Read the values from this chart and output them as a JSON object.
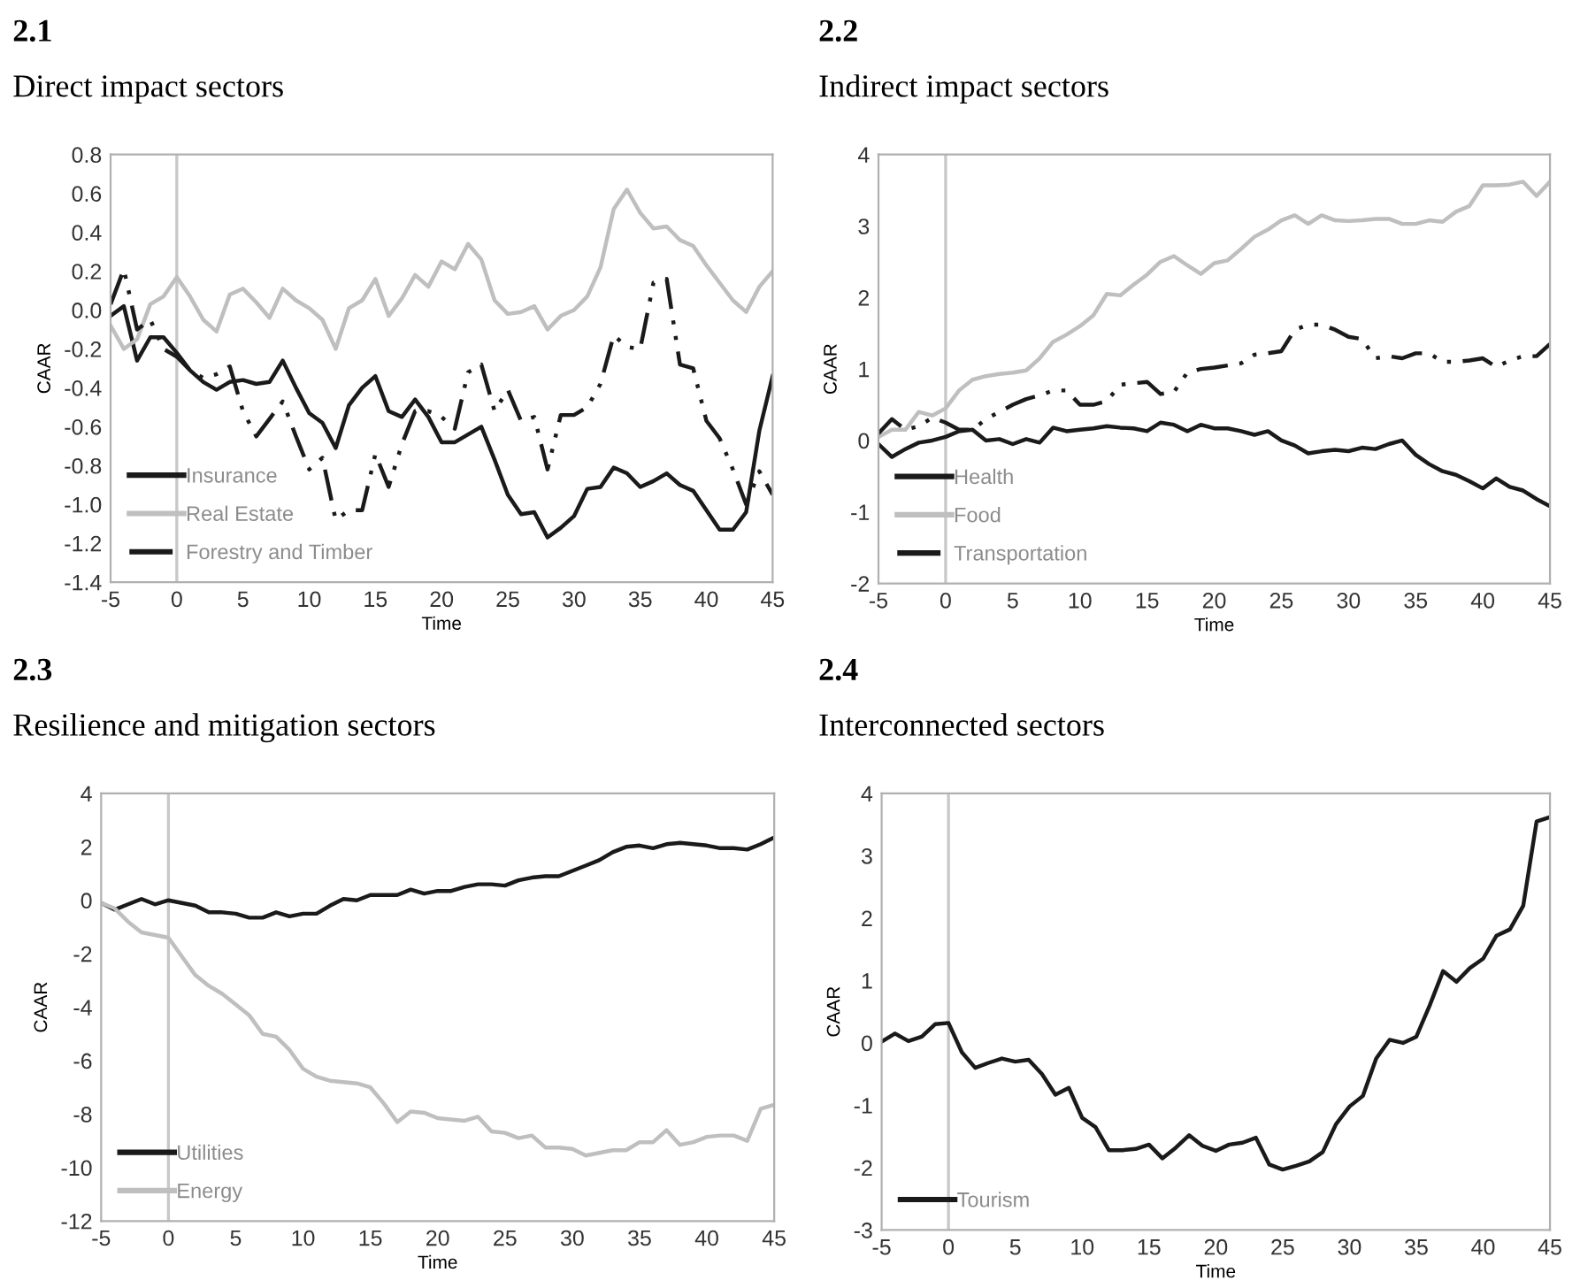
{
  "chart_data": [
    {
      "type": "line",
      "title": "2.1",
      "subtitle": "Direct impact sectors",
      "xlabel": "Time",
      "ylabel": "CAAR",
      "legend": "bottom left",
      "grid": false,
      "marker": "none",
      "x": [
        -5,
        -4,
        -3,
        -2,
        -1,
        0,
        1,
        2,
        3,
        4,
        5,
        6,
        7,
        8,
        9,
        10,
        11,
        12,
        13,
        14,
        15,
        16,
        17,
        18,
        19,
        20,
        21,
        22,
        23,
        24,
        25,
        26,
        27,
        28,
        29,
        30,
        31,
        32,
        33,
        34,
        35,
        36,
        37,
        38,
        39,
        40,
        41,
        42,
        43,
        44,
        45
      ],
      "xlim": [
        -5,
        45
      ],
      "xticks": [
        -5,
        0,
        5,
        10,
        15,
        20,
        25,
        30,
        35,
        40,
        45
      ],
      "ylim": [
        -1.4,
        0.8
      ],
      "yticks": [
        {
          "value": -1.4,
          "label": "-1.4"
        },
        {
          "value": -1.2,
          "label": "-1.2"
        },
        {
          "value": -1.0,
          "label": "-1.0"
        },
        {
          "value": -0.8,
          "label": "-0.8"
        },
        {
          "value": -0.6,
          "label": "-0.6"
        },
        {
          "value": -0.4,
          "label": "-0.4"
        },
        {
          "value": -0.2,
          "label": "-0.2"
        },
        {
          "value": 0,
          "label": "0.0"
        },
        {
          "value": 0.2,
          "label": "0.2"
        },
        {
          "value": 0.4,
          "label": "0.4"
        },
        {
          "value": 0.6,
          "label": "0.6"
        },
        {
          "value": 0.8,
          "label": "0.8"
        }
      ],
      "ref_lines": [
        {
          "axis": "x",
          "value": 0,
          "color": "#c8c8c8"
        }
      ],
      "series": [
        {
          "name": "Insurance",
          "color": "#1a1a1a",
          "line_style": "solid",
          "values": [
            -0.03,
            0.02,
            -0.26,
            -0.14,
            -0.14,
            -0.22,
            -0.31,
            -0.37,
            -0.41,
            -0.37,
            -0.36,
            -0.38,
            -0.37,
            -0.26,
            -0.4,
            -0.53,
            -0.58,
            -0.71,
            -0.49,
            -0.4,
            -0.34,
            -0.52,
            -0.55,
            -0.46,
            -0.55,
            -0.68,
            -0.68,
            -0.64,
            -0.6,
            -0.77,
            -0.95,
            -1.05,
            -1.04,
            -1.17,
            -1.12,
            -1.06,
            -0.92,
            -0.91,
            -0.81,
            -0.84,
            -0.91,
            -0.88,
            -0.84,
            -0.9,
            -0.93,
            -1.03,
            -1.13,
            -1.13,
            -1.04,
            -0.62,
            -0.34
          ]
        },
        {
          "name": "Real Estate",
          "color": "#bfbfbf",
          "line_style": "solid",
          "values": [
            -0.08,
            -0.2,
            -0.15,
            0.03,
            0.07,
            0.17,
            0.07,
            -0.05,
            -0.11,
            0.08,
            0.11,
            0.04,
            -0.04,
            0.11,
            0.05,
            0.01,
            -0.05,
            -0.2,
            0.01,
            0.05,
            0.16,
            -0.03,
            0.06,
            0.18,
            0.12,
            0.25,
            0.21,
            0.34,
            0.26,
            0.05,
            -0.02,
            -0.01,
            0.02,
            -0.1,
            -0.03,
            0.0,
            0.07,
            0.22,
            0.52,
            0.62,
            0.5,
            0.42,
            0.43,
            0.36,
            0.33,
            0.23,
            0.14,
            0.05,
            -0.01,
            0.12,
            0.2
          ]
        },
        {
          "name": "Forestry and Timber",
          "color": "#1a1a1a",
          "line_style": "dashed",
          "values": [
            0.03,
            0.21,
            -0.1,
            -0.05,
            -0.2,
            -0.24,
            -0.31,
            -0.35,
            -0.33,
            -0.29,
            -0.52,
            -0.65,
            -0.56,
            -0.47,
            -0.65,
            -0.82,
            -0.76,
            -1.08,
            -1.03,
            -1.03,
            -0.74,
            -0.91,
            -0.69,
            -0.52,
            -0.52,
            -0.55,
            -0.61,
            -0.32,
            -0.28,
            -0.52,
            -0.41,
            -0.57,
            -0.55,
            -0.82,
            -0.54,
            -0.54,
            -0.5,
            -0.38,
            -0.13,
            -0.19,
            -0.2,
            0.14,
            0.16,
            -0.28,
            -0.3,
            -0.57,
            -0.66,
            -0.82,
            -1.0,
            -0.83,
            -0.95
          ]
        }
      ]
    },
    {
      "type": "line",
      "title": "2.2",
      "subtitle": "Indirect impact sectors",
      "xlabel": "Time",
      "ylabel": "CAAR",
      "legend": "bottom left",
      "grid": false,
      "marker": "none",
      "x": [
        -5,
        -4,
        -3,
        -2,
        -1,
        0,
        1,
        2,
        3,
        4,
        5,
        6,
        7,
        8,
        9,
        10,
        11,
        12,
        13,
        14,
        15,
        16,
        17,
        18,
        19,
        20,
        21,
        22,
        23,
        24,
        25,
        26,
        27,
        28,
        29,
        30,
        31,
        32,
        33,
        34,
        35,
        36,
        37,
        38,
        39,
        40,
        41,
        42,
        43,
        44,
        45
      ],
      "xlim": [
        -5,
        45
      ],
      "xticks": [
        -5,
        0,
        5,
        10,
        15,
        20,
        25,
        30,
        35,
        40,
        45
      ],
      "ylim": [
        -2,
        4
      ],
      "yticks": [
        -2,
        -1,
        0,
        1,
        2,
        3,
        4
      ],
      "ref_lines": [
        {
          "axis": "x",
          "value": 0,
          "color": "#c8c8c8"
        }
      ],
      "series": [
        {
          "name": "Health",
          "color": "#1a1a1a",
          "line_style": "solid",
          "values": [
            -0.05,
            -0.23,
            -0.12,
            -0.03,
            0.0,
            0.05,
            0.13,
            0.15,
            0.0,
            0.02,
            -0.05,
            0.02,
            -0.03,
            0.18,
            0.13,
            0.15,
            0.17,
            0.2,
            0.18,
            0.17,
            0.13,
            0.25,
            0.22,
            0.13,
            0.22,
            0.17,
            0.17,
            0.13,
            0.08,
            0.13,
            0.0,
            -0.07,
            -0.18,
            -0.15,
            -0.13,
            -0.15,
            -0.1,
            -0.12,
            -0.05,
            0.0,
            -0.2,
            -0.33,
            -0.43,
            -0.48,
            -0.57,
            -0.67,
            -0.53,
            -0.65,
            -0.7,
            -0.82,
            -0.92
          ]
        },
        {
          "name": "Food",
          "color": "#bfbfbf",
          "line_style": "solid",
          "values": [
            0.05,
            0.15,
            0.15,
            0.4,
            0.35,
            0.45,
            0.7,
            0.85,
            0.9,
            0.93,
            0.95,
            0.98,
            1.15,
            1.38,
            1.48,
            1.6,
            1.75,
            2.05,
            2.03,
            2.18,
            2.32,
            2.5,
            2.58,
            2.45,
            2.33,
            2.48,
            2.52,
            2.68,
            2.85,
            2.95,
            3.08,
            3.15,
            3.03,
            3.15,
            3.08,
            3.07,
            3.08,
            3.1,
            3.1,
            3.03,
            3.03,
            3.08,
            3.06,
            3.2,
            3.28,
            3.57,
            3.57,
            3.58,
            3.62,
            3.42,
            3.62
          ]
        },
        {
          "name": "Transportation",
          "color": "#1a1a1a",
          "line_style": "dashed",
          "values": [
            0.1,
            0.3,
            0.15,
            0.2,
            0.32,
            0.25,
            0.15,
            0.15,
            0.3,
            0.4,
            0.5,
            0.58,
            0.63,
            0.7,
            0.7,
            0.5,
            0.5,
            0.55,
            0.78,
            0.8,
            0.82,
            0.65,
            0.68,
            0.95,
            1.0,
            1.02,
            1.05,
            1.08,
            1.2,
            1.22,
            1.25,
            1.55,
            1.62,
            1.62,
            1.55,
            1.45,
            1.42,
            1.15,
            1.18,
            1.15,
            1.22,
            1.22,
            1.1,
            1.1,
            1.12,
            1.15,
            1.03,
            1.12,
            1.18,
            1.18,
            1.35
          ]
        }
      ]
    },
    {
      "type": "line",
      "title": "2.3",
      "subtitle": "Resilience and mitigation sectors",
      "xlabel": "Time",
      "ylabel": "CAAR",
      "legend": "bottom left",
      "grid": false,
      "marker": "none",
      "x": [
        -5,
        -4,
        -3,
        -2,
        -1,
        0,
        1,
        2,
        3,
        4,
        5,
        6,
        7,
        8,
        9,
        10,
        11,
        12,
        13,
        14,
        15,
        16,
        17,
        18,
        19,
        20,
        21,
        22,
        23,
        24,
        25,
        26,
        27,
        28,
        29,
        30,
        31,
        32,
        33,
        34,
        35,
        36,
        37,
        38,
        39,
        40,
        41,
        42,
        43,
        44,
        45
      ],
      "xlim": [
        -5,
        45
      ],
      "xticks": [
        -5,
        0,
        5,
        10,
        15,
        20,
        25,
        30,
        35,
        40,
        45
      ],
      "ylim": [
        -12,
        4
      ],
      "yticks": [
        -12,
        -10,
        -8,
        -6,
        -4,
        -2,
        0,
        2,
        4
      ],
      "ref_lines": [
        {
          "axis": "x",
          "value": 0,
          "color": "#c8c8c8"
        }
      ],
      "series": [
        {
          "name": "Utilities",
          "color": "#1a1a1a",
          "line_style": "solid",
          "values": [
            -0.1,
            -0.35,
            -0.15,
            0.05,
            -0.15,
            0.0,
            -0.1,
            -0.2,
            -0.45,
            -0.45,
            -0.5,
            -0.65,
            -0.65,
            -0.45,
            -0.6,
            -0.5,
            -0.5,
            -0.2,
            0.05,
            0.0,
            0.2,
            0.2,
            0.2,
            0.4,
            0.25,
            0.35,
            0.35,
            0.5,
            0.6,
            0.6,
            0.55,
            0.75,
            0.85,
            0.9,
            0.9,
            1.1,
            1.3,
            1.5,
            1.8,
            2.0,
            2.05,
            1.95,
            2.1,
            2.15,
            2.1,
            2.05,
            1.95,
            1.95,
            1.9,
            2.1,
            2.35
          ]
        },
        {
          "name": "Energy",
          "color": "#bfbfbf",
          "line_style": "solid",
          "values": [
            -0.1,
            -0.3,
            -0.8,
            -1.2,
            -1.3,
            -1.4,
            -2.1,
            -2.8,
            -3.2,
            -3.5,
            -3.9,
            -4.3,
            -5.0,
            -5.1,
            -5.6,
            -6.3,
            -6.6,
            -6.75,
            -6.8,
            -6.85,
            -7.0,
            -7.6,
            -8.3,
            -7.9,
            -7.95,
            -8.15,
            -8.2,
            -8.25,
            -8.1,
            -8.65,
            -8.7,
            -8.9,
            -8.8,
            -9.25,
            -9.25,
            -9.3,
            -9.55,
            -9.45,
            -9.35,
            -9.35,
            -9.05,
            -9.05,
            -8.6,
            -9.15,
            -9.05,
            -8.85,
            -8.8,
            -8.8,
            -9.0,
            -7.8,
            -7.65
          ]
        }
      ]
    },
    {
      "type": "line",
      "title": "2.4",
      "subtitle": "Interconnected sectors",
      "xlabel": "Time",
      "ylabel": "CAAR",
      "legend": "bottom left",
      "grid": false,
      "marker": "none",
      "x": [
        -5,
        -4,
        -3,
        -2,
        -1,
        0,
        1,
        2,
        3,
        4,
        5,
        6,
        7,
        8,
        9,
        10,
        11,
        12,
        13,
        14,
        15,
        16,
        17,
        18,
        19,
        20,
        21,
        22,
        23,
        24,
        25,
        26,
        27,
        28,
        29,
        30,
        31,
        32,
        33,
        34,
        35,
        36,
        37,
        38,
        39,
        40,
        41,
        42,
        43,
        44,
        45
      ],
      "xlim": [
        -5,
        45
      ],
      "xticks": [
        -5,
        0,
        5,
        10,
        15,
        20,
        25,
        30,
        35,
        40,
        45
      ],
      "ylim": [
        -3,
        4
      ],
      "yticks": [
        -3,
        -2,
        -1,
        0,
        1,
        2,
        3,
        4
      ],
      "ref_lines": [
        {
          "axis": "x",
          "value": 0,
          "color": "#c8c8c8"
        }
      ],
      "series": [
        {
          "name": "Tourism",
          "color": "#1a1a1a",
          "line_style": "solid",
          "values": [
            0.02,
            0.15,
            0.03,
            0.1,
            0.3,
            0.32,
            -0.15,
            -0.4,
            -0.32,
            -0.25,
            -0.3,
            -0.27,
            -0.5,
            -0.83,
            -0.72,
            -1.2,
            -1.35,
            -1.72,
            -1.72,
            -1.7,
            -1.63,
            -1.85,
            -1.68,
            -1.48,
            -1.65,
            -1.73,
            -1.63,
            -1.6,
            -1.52,
            -1.95,
            -2.03,
            -1.97,
            -1.9,
            -1.75,
            -1.3,
            -1.02,
            -0.85,
            -0.25,
            0.05,
            0.0,
            0.1,
            0.6,
            1.15,
            0.98,
            1.2,
            1.35,
            1.72,
            1.82,
            2.2,
            3.55,
            3.62
          ]
        }
      ]
    }
  ]
}
